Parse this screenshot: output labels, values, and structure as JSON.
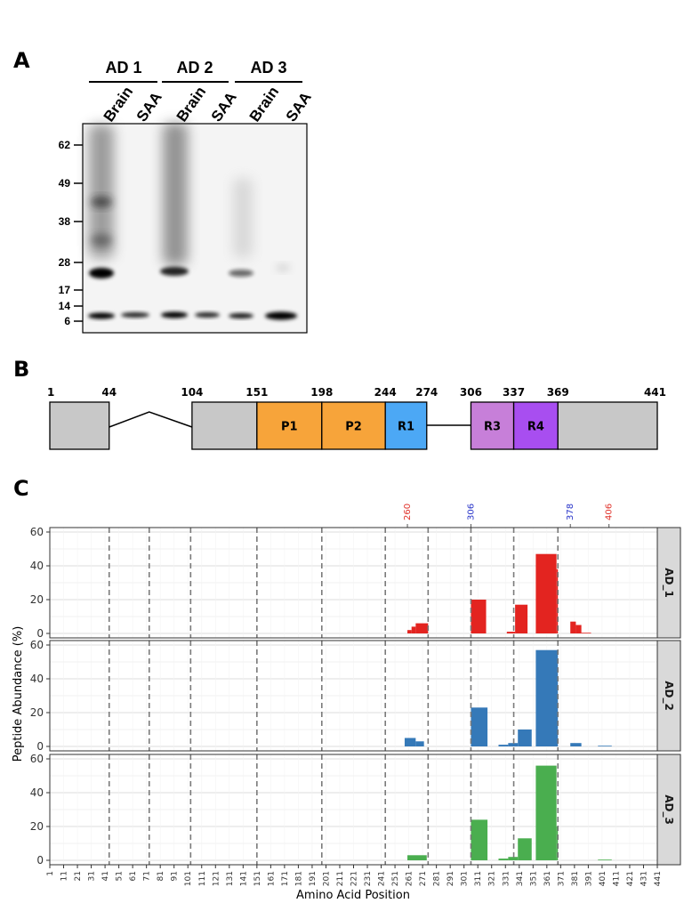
{
  "panels": {
    "a": "A",
    "b": "B",
    "c": "C"
  },
  "blot": {
    "groups": [
      "AD 1",
      "AD 2",
      "AD 3"
    ],
    "lanes": [
      "Brain",
      "SAA",
      "Brain",
      "SAA",
      "Brain",
      "SAA"
    ],
    "markers": [
      {
        "label": "62",
        "kda": 62
      },
      {
        "label": "49",
        "kda": 49
      },
      {
        "label": "38",
        "kda": 38
      },
      {
        "label": "28",
        "kda": 28
      },
      {
        "label": "17",
        "kda": 17
      },
      {
        "label": "14",
        "kda": 14
      },
      {
        "label": "6",
        "kda": 6
      }
    ]
  },
  "tau_domains": {
    "positions": [
      "1",
      "44",
      "104",
      "151",
      "198",
      "244",
      "274",
      "306",
      "337",
      "369",
      "441"
    ],
    "segments": [
      {
        "name": "",
        "start": 1,
        "end": 44,
        "color": "#c8c8c8"
      },
      {
        "name": "",
        "start": 104,
        "end": 151,
        "color": "#c8c8c8"
      },
      {
        "name": "P1",
        "start": 151,
        "end": 198,
        "color": "#f7a43a"
      },
      {
        "name": "P2",
        "start": 198,
        "end": 244,
        "color": "#f7a43a"
      },
      {
        "name": "R1",
        "start": 244,
        "end": 274,
        "color": "#4ca8f5"
      },
      {
        "name": "R3",
        "start": 306,
        "end": 337,
        "color": "#c77fd9"
      },
      {
        "name": "R4",
        "start": 337,
        "end": 369,
        "color": "#a84ef0"
      },
      {
        "name": "",
        "start": 369,
        "end": 441,
        "color": "#c8c8c8"
      }
    ]
  },
  "chart_data": {
    "type": "bar",
    "title": "",
    "xlabel": "Amino Acid Position",
    "ylabel": "Peptide Abundance (%)",
    "ylim": [
      0,
      60
    ],
    "y_ticks": [
      0,
      20,
      40,
      60
    ],
    "xlim": [
      1,
      441
    ],
    "x_ticks": [
      "1",
      "11",
      "21",
      "31",
      "41",
      "51",
      "61",
      "71",
      "81",
      "91",
      "101",
      "111",
      "121",
      "131",
      "141",
      "151",
      "161",
      "171",
      "181",
      "191",
      "201",
      "211",
      "221",
      "231",
      "241",
      "251",
      "261",
      "271",
      "281",
      "291",
      "301",
      "311",
      "321",
      "331",
      "341",
      "351",
      "361",
      "371",
      "381",
      "391",
      "401",
      "411",
      "421",
      "431",
      "441"
    ],
    "dashed_lines": [
      44,
      73,
      103,
      151,
      198,
      244,
      275,
      306,
      337,
      369
    ],
    "annotations": [
      {
        "text": "260",
        "x": 260,
        "color": "#e0322a"
      },
      {
        "text": "306",
        "x": 306,
        "color": "#2632c8"
      },
      {
        "text": "378",
        "x": 378,
        "color": "#2632c8"
      },
      {
        "text": "406",
        "x": 406,
        "color": "#e0322a"
      }
    ],
    "panels": [
      {
        "name": "AD_1",
        "color": "#e32420",
        "bars": [
          {
            "x0": 260,
            "x1": 263,
            "y": 2
          },
          {
            "x0": 263,
            "x1": 266,
            "y": 4
          },
          {
            "x0": 266,
            "x1": 275,
            "y": 6
          },
          {
            "x0": 306,
            "x1": 317,
            "y": 20
          },
          {
            "x0": 332,
            "x1": 338,
            "y": 1
          },
          {
            "x0": 338,
            "x1": 347,
            "y": 17
          },
          {
            "x0": 353,
            "x1": 368,
            "y": 47
          },
          {
            "x0": 368,
            "x1": 369,
            "y": 38
          },
          {
            "x0": 378,
            "x1": 382,
            "y": 7
          },
          {
            "x0": 382,
            "x1": 386,
            "y": 5
          },
          {
            "x0": 386,
            "x1": 393,
            "y": 0.4
          }
        ]
      },
      {
        "name": "AD_2",
        "color": "#3579b8",
        "bars": [
          {
            "x0": 258,
            "x1": 266,
            "y": 5
          },
          {
            "x0": 266,
            "x1": 272,
            "y": 3
          },
          {
            "x0": 306,
            "x1": 318,
            "y": 23
          },
          {
            "x0": 326,
            "x1": 333,
            "y": 1
          },
          {
            "x0": 333,
            "x1": 340,
            "y": 2
          },
          {
            "x0": 340,
            "x1": 350,
            "y": 10
          },
          {
            "x0": 353,
            "x1": 369,
            "y": 57
          },
          {
            "x0": 378,
            "x1": 386,
            "y": 2
          },
          {
            "x0": 398,
            "x1": 408,
            "y": 0.4
          }
        ]
      },
      {
        "name": "AD_3",
        "color": "#4aae4f",
        "bars": [
          {
            "x0": 260,
            "x1": 274,
            "y": 3
          },
          {
            "x0": 306,
            "x1": 318,
            "y": 24
          },
          {
            "x0": 326,
            "x1": 333,
            "y": 1
          },
          {
            "x0": 333,
            "x1": 340,
            "y": 2
          },
          {
            "x0": 340,
            "x1": 350,
            "y": 13
          },
          {
            "x0": 353,
            "x1": 368,
            "y": 56
          },
          {
            "x0": 368,
            "x1": 369,
            "y": 20
          },
          {
            "x0": 398,
            "x1": 408,
            "y": 0.4
          }
        ]
      }
    ]
  }
}
